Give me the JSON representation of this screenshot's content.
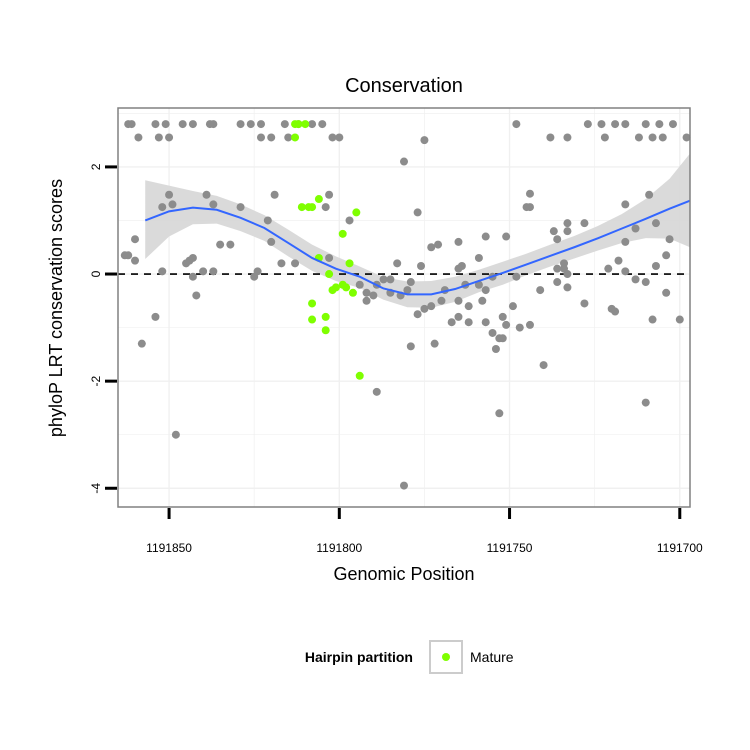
{
  "chart_data": {
    "type": "scatter",
    "title": "Conservation",
    "xlabel": "Genomic Position",
    "ylabel": "phyloP LRT conservation scores",
    "x_reversed": true,
    "xlim": [
      1191865,
      1191697
    ],
    "ylim": [
      -4.35,
      3.1
    ],
    "x_ticks": [
      1191850,
      1191800,
      1191750,
      1191700
    ],
    "x_tick_labels": [
      "1191850",
      "1191800",
      "1191750",
      "1191700"
    ],
    "y_ticks": [
      2,
      0,
      -2,
      -4
    ],
    "y_tick_labels": [
      "2",
      "0",
      "-2",
      "-4"
    ],
    "reference_line": {
      "y": 0,
      "style": "dashed"
    },
    "grid": true,
    "legend": {
      "title": "Hairpin partition",
      "placement": "bottom",
      "entries": [
        "Mature"
      ]
    },
    "colors": {
      "background_points": "#8c8c8c",
      "mature": "#7fff00",
      "smooth": "#3366ff",
      "ribbon": "#d6d6d6",
      "frame": "#808080",
      "grid": "#f0f0f0"
    },
    "series": [
      {
        "role": "background",
        "points": [
          [
            1191862,
            2.8
          ],
          [
            1191861,
            2.8
          ],
          [
            1191854,
            2.8
          ],
          [
            1191851,
            2.8
          ],
          [
            1191846,
            2.8
          ],
          [
            1191843,
            2.8
          ],
          [
            1191838,
            2.8
          ],
          [
            1191837,
            2.8
          ],
          [
            1191829,
            2.8
          ],
          [
            1191826,
            2.8
          ],
          [
            1191823,
            2.8
          ],
          [
            1191816,
            2.8
          ],
          [
            1191812,
            2.8
          ],
          [
            1191808,
            2.8
          ],
          [
            1191805,
            2.8
          ],
          [
            1191748,
            2.8
          ],
          [
            1191727,
            2.8
          ],
          [
            1191723,
            2.8
          ],
          [
            1191719,
            2.8
          ],
          [
            1191716,
            2.8
          ],
          [
            1191710,
            2.8
          ],
          [
            1191706,
            2.8
          ],
          [
            1191702,
            2.8
          ],
          [
            1191859,
            2.55
          ],
          [
            1191853,
            2.55
          ],
          [
            1191850,
            2.55
          ],
          [
            1191823,
            2.55
          ],
          [
            1191820,
            2.55
          ],
          [
            1191815,
            2.55
          ],
          [
            1191802,
            2.55
          ],
          [
            1191800,
            2.55
          ],
          [
            1191738,
            2.55
          ],
          [
            1191733,
            2.55
          ],
          [
            1191722,
            2.55
          ],
          [
            1191712,
            2.55
          ],
          [
            1191708,
            2.55
          ],
          [
            1191705,
            2.55
          ],
          [
            1191698,
            2.55
          ],
          [
            1191775,
            2.5
          ],
          [
            1191781,
            2.1
          ],
          [
            1191744,
            1.5
          ],
          [
            1191803,
            1.48
          ],
          [
            1191850,
            1.48
          ],
          [
            1191839,
            1.48
          ],
          [
            1191819,
            1.48
          ],
          [
            1191709,
            1.48
          ],
          [
            1191745,
            1.25
          ],
          [
            1191804,
            1.25
          ],
          [
            1191829,
            1.25
          ],
          [
            1191744,
            1.25
          ],
          [
            1191716,
            1.3
          ],
          [
            1191837,
            1.3
          ],
          [
            1191849,
            1.3
          ],
          [
            1191797,
            1.0
          ],
          [
            1191821,
            1.0
          ],
          [
            1191777,
            1.15
          ],
          [
            1191852,
            1.25
          ],
          [
            1191733,
            0.95
          ],
          [
            1191707,
            0.95
          ],
          [
            1191728,
            0.95
          ],
          [
            1191713,
            0.85
          ],
          [
            1191860,
            0.65
          ],
          [
            1191863,
            0.35
          ],
          [
            1191862,
            0.35
          ],
          [
            1191843,
            0.3
          ],
          [
            1191835,
            0.55
          ],
          [
            1191832,
            0.55
          ],
          [
            1191820,
            0.6
          ],
          [
            1191716,
            0.6
          ],
          [
            1191737,
            0.8
          ],
          [
            1191733,
            0.8
          ],
          [
            1191751,
            0.7
          ],
          [
            1191736,
            0.65
          ],
          [
            1191703,
            0.65
          ],
          [
            1191773,
            0.5
          ],
          [
            1191771,
            0.55
          ],
          [
            1191765,
            0.6
          ],
          [
            1191757,
            0.7
          ],
          [
            1191844,
            0.25
          ],
          [
            1191860,
            0.25
          ],
          [
            1191845,
            0.2
          ],
          [
            1191813,
            0.2
          ],
          [
            1191776,
            0.15
          ],
          [
            1191764,
            0.15
          ],
          [
            1191734,
            0.2
          ],
          [
            1191734,
            0.1
          ],
          [
            1191721,
            0.1
          ],
          [
            1191718,
            0.25
          ],
          [
            1191736,
            0.1
          ],
          [
            1191704,
            0.35
          ],
          [
            1191803,
            0.3
          ],
          [
            1191852,
            0.05
          ],
          [
            1191843,
            -0.05
          ],
          [
            1191840,
            0.05
          ],
          [
            1191837,
            0.05
          ],
          [
            1191825,
            -0.05
          ],
          [
            1191824,
            0.05
          ],
          [
            1191817,
            0.2
          ],
          [
            1191783,
            0.2
          ],
          [
            1191765,
            0.1
          ],
          [
            1191759,
            0.3
          ],
          [
            1191755,
            -0.05
          ],
          [
            1191733,
            0.0
          ],
          [
            1191716,
            0.05
          ],
          [
            1191713,
            -0.1
          ],
          [
            1191707,
            0.15
          ],
          [
            1191842,
            -0.4
          ],
          [
            1191794,
            -0.2
          ],
          [
            1191792,
            -0.35
          ],
          [
            1191790,
            -0.4
          ],
          [
            1191789,
            -0.2
          ],
          [
            1191787,
            -0.1
          ],
          [
            1191785,
            -0.35
          ],
          [
            1191782,
            -0.4
          ],
          [
            1191780,
            -0.3
          ],
          [
            1191779,
            -0.15
          ],
          [
            1191777,
            -0.75
          ],
          [
            1191775,
            -0.65
          ],
          [
            1191773,
            -0.6
          ],
          [
            1191770,
            -0.5
          ],
          [
            1191765,
            -0.8
          ],
          [
            1191762,
            -0.6
          ],
          [
            1191759,
            -0.2
          ],
          [
            1191757,
            -0.3
          ],
          [
            1191752,
            -0.8
          ],
          [
            1191749,
            -0.6
          ],
          [
            1191748,
            -0.05
          ],
          [
            1191741,
            -0.3
          ],
          [
            1191736,
            -0.15
          ],
          [
            1191733,
            -0.25
          ],
          [
            1191728,
            -0.55
          ],
          [
            1191720,
            -0.65
          ],
          [
            1191710,
            -0.15
          ],
          [
            1191704,
            -0.35
          ],
          [
            1191700,
            -0.85
          ],
          [
            1191763,
            -0.2
          ],
          [
            1191765,
            -0.5
          ],
          [
            1191769,
            -0.3
          ],
          [
            1191785,
            -0.1
          ],
          [
            1191792,
            -0.5
          ],
          [
            1191854,
            -0.8
          ],
          [
            1191767,
            -0.9
          ],
          [
            1191762,
            -0.9
          ],
          [
            1191758,
            -0.5
          ],
          [
            1191757,
            -0.9
          ],
          [
            1191755,
            -1.1
          ],
          [
            1191752,
            -1.2
          ],
          [
            1191753,
            -1.2
          ],
          [
            1191754,
            -1.4
          ],
          [
            1191747,
            -1.0
          ],
          [
            1191751,
            -0.95
          ],
          [
            1191744,
            -0.95
          ],
          [
            1191779,
            -1.35
          ],
          [
            1191772,
            -1.3
          ],
          [
            1191858,
            -1.3
          ],
          [
            1191740,
            -1.7
          ],
          [
            1191789,
            -2.2
          ],
          [
            1191781,
            -3.95
          ],
          [
            1191848,
            -3.0
          ],
          [
            1191753,
            -2.6
          ],
          [
            1191710,
            -2.4
          ],
          [
            1191719,
            -0.7
          ],
          [
            1191708,
            -0.85
          ]
        ]
      },
      {
        "name": "Mature",
        "points": [
          [
            1191813,
            2.8
          ],
          [
            1191812,
            2.8
          ],
          [
            1191810,
            2.8
          ],
          [
            1191813,
            2.55
          ],
          [
            1191808,
            1.25
          ],
          [
            1191809,
            1.25
          ],
          [
            1191811,
            1.25
          ],
          [
            1191806,
            1.4
          ],
          [
            1191795,
            1.15
          ],
          [
            1191799,
            0.75
          ],
          [
            1191806,
            0.3
          ],
          [
            1191803,
            0.0
          ],
          [
            1191797,
            0.2
          ],
          [
            1191801,
            -0.25
          ],
          [
            1191799,
            -0.2
          ],
          [
            1191802,
            -0.3
          ],
          [
            1191798,
            -0.25
          ],
          [
            1191796,
            -0.35
          ],
          [
            1191808,
            -0.55
          ],
          [
            1191804,
            -0.8
          ],
          [
            1191808,
            -0.85
          ],
          [
            1191804,
            -1.05
          ],
          [
            1191794,
            -1.9
          ]
        ]
      }
    ],
    "smooth": {
      "curve": [
        [
          1191857,
          1.0
        ],
        [
          1191850,
          1.17
        ],
        [
          1191843,
          1.24
        ],
        [
          1191836,
          1.2
        ],
        [
          1191829,
          1.05
        ],
        [
          1191822,
          0.86
        ],
        [
          1191815,
          0.58
        ],
        [
          1191808,
          0.3
        ],
        [
          1191801,
          0.1
        ],
        [
          1191794,
          -0.05
        ],
        [
          1191787,
          -0.27
        ],
        [
          1191780,
          -0.38
        ],
        [
          1191773,
          -0.38
        ],
        [
          1191766,
          -0.28
        ],
        [
          1191759,
          -0.13
        ],
        [
          1191752,
          0.02
        ],
        [
          1191745,
          0.18
        ],
        [
          1191738,
          0.34
        ],
        [
          1191731,
          0.5
        ],
        [
          1191724,
          0.67
        ],
        [
          1191717,
          0.85
        ],
        [
          1191710,
          1.03
        ],
        [
          1191703,
          1.22
        ],
        [
          1191697,
          1.37
        ]
      ],
      "upper": [
        [
          1191857,
          1.75
        ],
        [
          1191850,
          1.65
        ],
        [
          1191843,
          1.55
        ],
        [
          1191836,
          1.46
        ],
        [
          1191829,
          1.3
        ],
        [
          1191822,
          1.1
        ],
        [
          1191815,
          0.83
        ],
        [
          1191808,
          0.55
        ],
        [
          1191801,
          0.33
        ],
        [
          1191794,
          0.14
        ],
        [
          1191787,
          -0.06
        ],
        [
          1191780,
          -0.14
        ],
        [
          1191773,
          -0.13
        ],
        [
          1191766,
          -0.05
        ],
        [
          1191759,
          0.08
        ],
        [
          1191752,
          0.23
        ],
        [
          1191745,
          0.38
        ],
        [
          1191738,
          0.55
        ],
        [
          1191731,
          0.71
        ],
        [
          1191724,
          0.9
        ],
        [
          1191717,
          1.12
        ],
        [
          1191710,
          1.4
        ],
        [
          1191703,
          1.78
        ],
        [
          1191697,
          2.25
        ]
      ],
      "lower": [
        [
          1191857,
          0.28
        ],
        [
          1191850,
          0.7
        ],
        [
          1191843,
          0.93
        ],
        [
          1191836,
          0.94
        ],
        [
          1191829,
          0.8
        ],
        [
          1191822,
          0.62
        ],
        [
          1191815,
          0.33
        ],
        [
          1191808,
          0.06
        ],
        [
          1191801,
          -0.13
        ],
        [
          1191794,
          -0.26
        ],
        [
          1191787,
          -0.48
        ],
        [
          1191780,
          -0.62
        ],
        [
          1191773,
          -0.63
        ],
        [
          1191766,
          -0.52
        ],
        [
          1191759,
          -0.34
        ],
        [
          1191752,
          -0.2
        ],
        [
          1191745,
          -0.02
        ],
        [
          1191738,
          0.14
        ],
        [
          1191731,
          0.29
        ],
        [
          1191724,
          0.44
        ],
        [
          1191717,
          0.58
        ],
        [
          1191710,
          0.67
        ],
        [
          1191703,
          0.66
        ],
        [
          1191697,
          0.5
        ]
      ]
    }
  }
}
